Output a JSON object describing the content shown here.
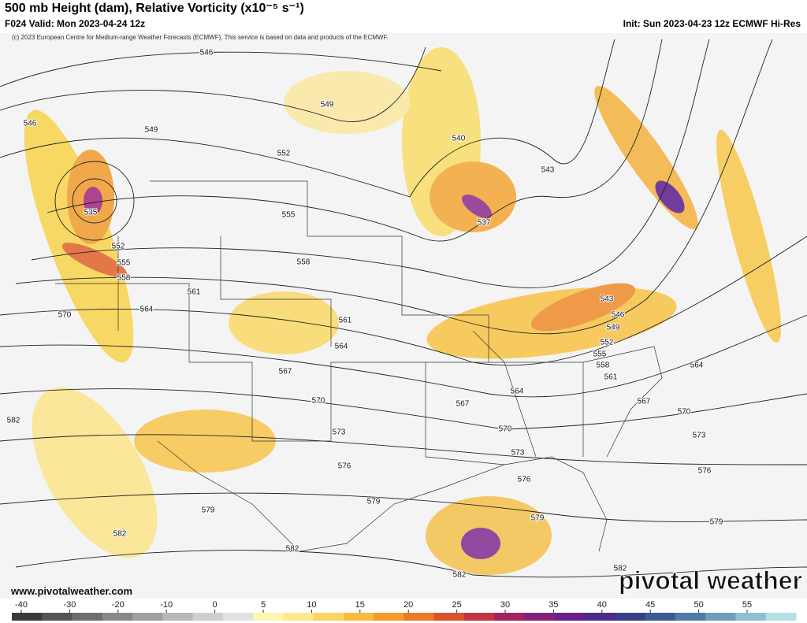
{
  "header": {
    "title": "500 mb Height (dam), Relative Vorticity (x10⁻⁵ s⁻¹)",
    "valid": "F024 Valid: Mon 2023-04-24 12z",
    "init": "Init: Sun 2023-04-23 12z ECMWF Hi-Res",
    "copyright": "(c) 2023 European Centre for Medium-range Weather Forecasts (ECMWF). This service is based on data and products of the ECMWF."
  },
  "contour_labels": [
    546,
    549,
    546,
    549,
    552,
    540,
    543,
    537,
    555,
    552,
    555,
    558,
    558,
    561,
    564,
    570,
    561,
    564,
    543,
    546,
    549,
    552,
    555,
    558,
    561,
    564,
    567,
    564,
    567,
    567,
    570,
    570,
    573,
    570,
    573,
    573,
    576,
    576,
    576,
    582,
    579,
    579,
    579,
    579,
    582,
    582,
    582,
    582,
    535
  ],
  "footer": {
    "url": "www.pivotalweather.com",
    "brand": "pivotal weather"
  },
  "colorbar": {
    "ticks": [
      -40,
      -30,
      -20,
      -10,
      0,
      5,
      10,
      15,
      20,
      25,
      30,
      35,
      40,
      45,
      50,
      55
    ]
  }
}
